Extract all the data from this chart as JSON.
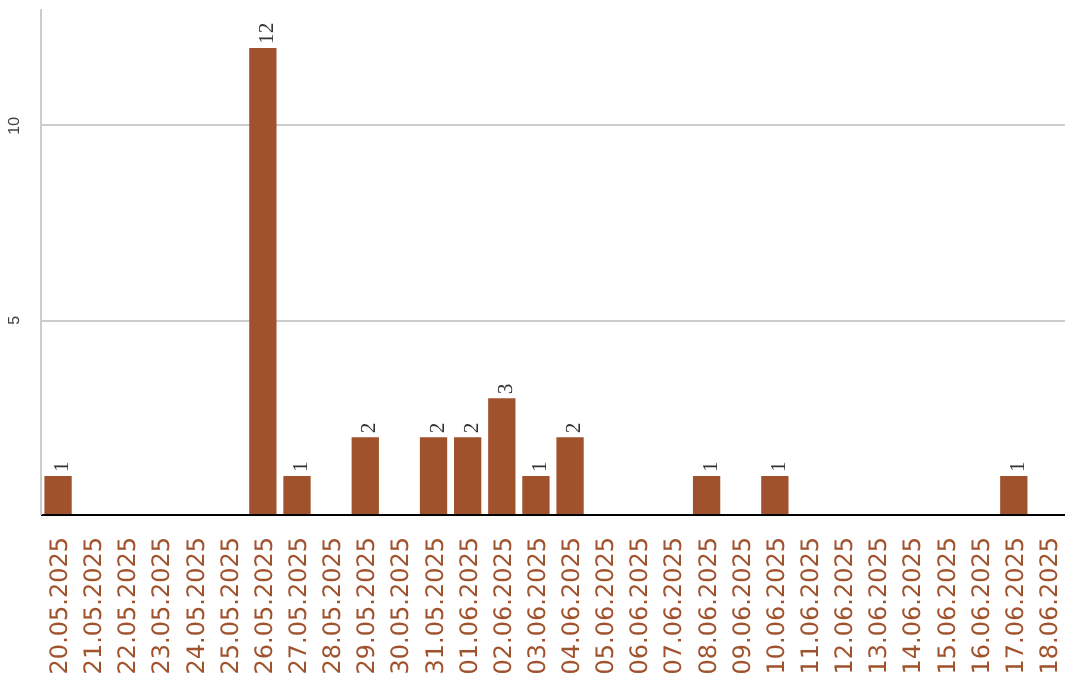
{
  "chart_data": {
    "type": "bar",
    "categories": [
      "20.05.2025",
      "21.05.2025",
      "22.05.2025",
      "23.05.2025",
      "24.05.2025",
      "25.05.2025",
      "26.05.2025",
      "27.05.2025",
      "28.05.2025",
      "29.05.2025",
      "30.05.2025",
      "31.05.2025",
      "01.06.2025",
      "02.06.2025",
      "03.06.2025",
      "04.06.2025",
      "05.06.2025",
      "06.06.2025",
      "07.06.2025",
      "08.06.2025",
      "09.06.2025",
      "10.06.2025",
      "11.06.2025",
      "12.06.2025",
      "13.06.2025",
      "14.06.2025",
      "15.06.2025",
      "16.06.2025",
      "17.06.2025",
      "18.06.2025"
    ],
    "values": [
      1,
      0,
      0,
      0,
      0,
      0,
      12,
      1,
      0,
      2,
      0,
      2,
      2,
      3,
      1,
      2,
      0,
      0,
      0,
      1,
      0,
      1,
      0,
      0,
      0,
      0,
      0,
      0,
      1,
      0
    ],
    "value_labels": [
      "1",
      null,
      null,
      null,
      null,
      null,
      "12",
      "1",
      null,
      "2",
      null,
      "2",
      "2",
      "3",
      "1",
      "2",
      null,
      null,
      null,
      "1",
      null,
      "1",
      null,
      null,
      null,
      null,
      null,
      null,
      "1",
      null
    ],
    "color": "#a0522d",
    "ylim": [
      0,
      13
    ],
    "yticks": [
      5,
      10
    ],
    "grid": "y"
  }
}
